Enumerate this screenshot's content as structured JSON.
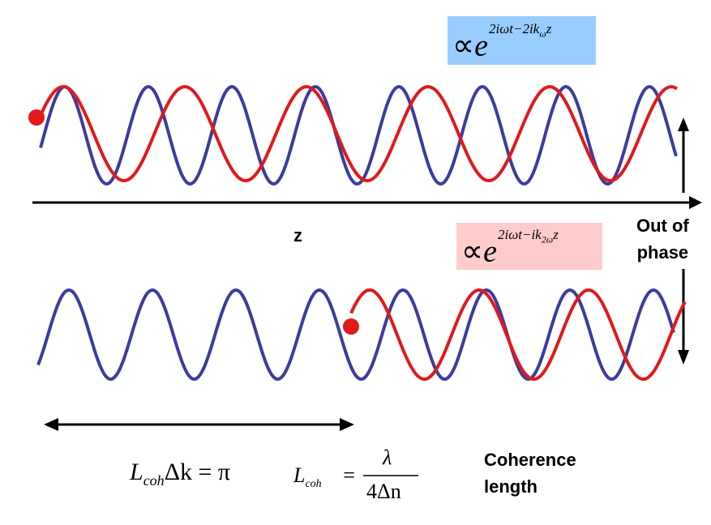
{
  "axis_label": "z",
  "phase_label": [
    "Out of",
    "phase"
  ],
  "coherence_label": [
    "Coherence",
    "length"
  ],
  "formula_top": {
    "prefix": "∝",
    "base": "e",
    "exponent_main": "2iωt−2ik",
    "exponent_sub": "ω",
    "exponent_end": "z",
    "bg_color": "#99ccff"
  },
  "formula_mid": {
    "prefix": "∝",
    "base": "e",
    "exponent_main": "2iωt−ik",
    "exponent_sub": "2ω",
    "exponent_end": "z",
    "bg_color": "#ffcccc"
  },
  "eq_left": {
    "L": "L",
    "sub": "coh",
    "rest": "Δk = π"
  },
  "eq_right": {
    "L": "L",
    "sub": "coh",
    "eq": "=",
    "num": "λ",
    "den": "4Δn"
  },
  "colors": {
    "blue_wave": "#3c3c9e",
    "red_wave": "#e01a1a",
    "axis": "#000000"
  },
  "icons": {
    "start_marker": "red-dot",
    "end_marker": "red-dot"
  }
}
